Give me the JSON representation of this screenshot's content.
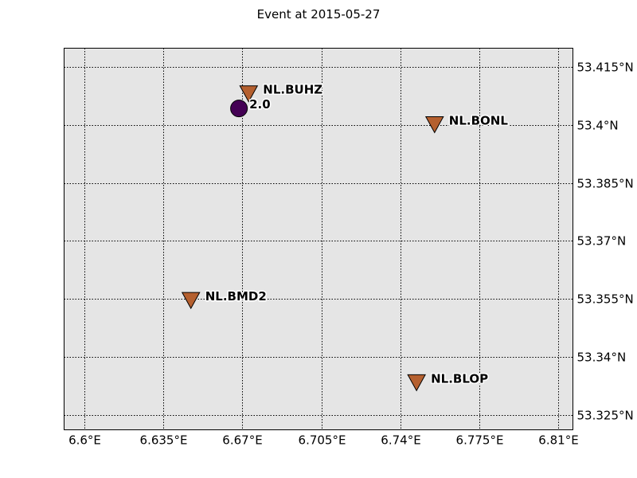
{
  "title": "Event at 2015-05-27",
  "colors": {
    "background": "#e5e5e5",
    "station": "#b5602f",
    "event": "#440154",
    "grid": "#000000"
  },
  "chart_data": {
    "type": "scatter",
    "projection": "geographic",
    "xlim": [
      6.591,
      6.8165
    ],
    "ylim": [
      53.3211,
      53.4199
    ],
    "x_ticks": [
      6.6,
      6.635,
      6.67,
      6.705,
      6.74,
      6.775,
      6.81
    ],
    "x_tick_labels": [
      "6.6°E",
      "6.635°E",
      "6.67°E",
      "6.705°E",
      "6.74°E",
      "6.775°E",
      "6.81°E"
    ],
    "y_ticks": [
      53.415,
      53.4,
      53.385,
      53.37,
      53.355,
      53.34,
      53.325
    ],
    "y_tick_labels": [
      "53.415°N",
      "53.4°N",
      "53.385°N",
      "53.37°N",
      "53.355°N",
      "53.34°N",
      "53.325°N"
    ],
    "grid": true,
    "stations": [
      {
        "name": "NL.BUHZ",
        "lon": 6.6728,
        "lat": 53.4083
      },
      {
        "name": "NL.BONL",
        "lon": 6.7552,
        "lat": 53.4003
      },
      {
        "name": "NL.BMD2",
        "lon": 6.6472,
        "lat": 53.3548
      },
      {
        "name": "NL.BLOP",
        "lon": 6.7472,
        "lat": 53.3335
      }
    ],
    "events": [
      {
        "label": "2.0",
        "lon": 6.6685,
        "lat": 53.4043,
        "magnitude": 2.0
      }
    ]
  }
}
